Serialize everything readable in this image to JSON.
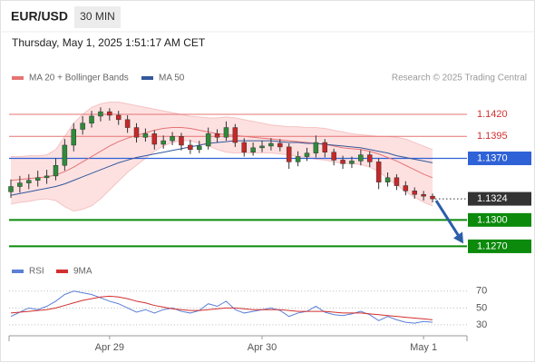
{
  "chart_data": {
    "type": "candlestick",
    "title": "EUR/USD",
    "timeframe": "30 MIN",
    "subtitle": "Thursday, May 1, 2025 1:51:17 AM CET",
    "source": "Research © 2025 Trading Central",
    "categories": [
      null,
      null,
      null,
      null,
      null,
      null,
      null,
      null,
      null,
      null,
      null,
      "Apr 29",
      null,
      null,
      null,
      null,
      null,
      null,
      null,
      null,
      null,
      null,
      null,
      null,
      null,
      null,
      null,
      null,
      "Apr 30",
      null,
      null,
      null,
      null,
      null,
      null,
      null,
      null,
      null,
      null,
      null,
      null,
      null,
      null,
      null,
      null,
      null,
      "May 1",
      null
    ],
    "up_color": "#2e8b3a",
    "down_color": "#c62828",
    "open": [
      1.1332,
      1.1338,
      1.1342,
      1.1345,
      1.1348,
      1.135,
      1.1362,
      1.1385,
      1.1403,
      1.141,
      1.1418,
      1.1423,
      1.1419,
      1.1414,
      1.1405,
      1.1394,
      1.1398,
      1.1386,
      1.139,
      1.1395,
      1.1385,
      1.138,
      1.1384,
      1.1398,
      1.1394,
      1.1405,
      1.1388,
      1.1377,
      1.1382,
      1.1384,
      1.1387,
      1.1383,
      1.1366,
      1.1372,
      1.1376,
      1.1388,
      1.1377,
      1.1368,
      1.1364,
      1.1367,
      1.1374,
      1.1366,
      1.1343,
      1.1348,
      1.1339,
      1.1333,
      1.1329,
      1.1327
    ],
    "high": [
      1.1346,
      1.135,
      1.1352,
      1.1356,
      1.1357,
      1.137,
      1.1392,
      1.141,
      1.1418,
      1.1424,
      1.1428,
      1.1427,
      1.1424,
      1.1419,
      1.141,
      1.1404,
      1.1402,
      1.1396,
      1.14,
      1.1399,
      1.1391,
      1.139,
      1.1405,
      1.1403,
      1.1412,
      1.1409,
      1.1393,
      1.1388,
      1.139,
      1.1393,
      1.1392,
      1.1387,
      1.1378,
      1.1382,
      1.1396,
      1.1392,
      1.1381,
      1.1373,
      1.1372,
      1.138,
      1.1378,
      1.137,
      1.1354,
      1.1352,
      1.1344,
      1.1337,
      1.1333,
      1.133
    ],
    "low": [
      1.1325,
      1.1331,
      1.1335,
      1.1338,
      1.1341,
      1.1345,
      1.1356,
      1.1378,
      1.1397,
      1.1405,
      1.1412,
      1.1413,
      1.1408,
      1.1399,
      1.1388,
      1.1389,
      1.138,
      1.1381,
      1.1385,
      1.1379,
      1.1375,
      1.1376,
      1.138,
      1.1388,
      1.139,
      1.1383,
      1.1372,
      1.1373,
      1.1377,
      1.1379,
      1.1378,
      1.1358,
      1.1361,
      1.1367,
      1.1371,
      1.1371,
      1.1362,
      1.1358,
      1.1359,
      1.1362,
      1.136,
      1.1335,
      1.1338,
      1.1334,
      1.1328,
      1.1324,
      1.1322,
      1.132
    ],
    "close": [
      1.1338,
      1.1342,
      1.1345,
      1.1348,
      1.135,
      1.1362,
      1.1385,
      1.1403,
      1.141,
      1.1418,
      1.1423,
      1.1419,
      1.1414,
      1.1405,
      1.1394,
      1.1398,
      1.1386,
      1.139,
      1.1395,
      1.1385,
      1.138,
      1.1384,
      1.1398,
      1.1394,
      1.1405,
      1.1388,
      1.1377,
      1.1382,
      1.1384,
      1.1387,
      1.1383,
      1.1366,
      1.1372,
      1.1376,
      1.1388,
      1.1377,
      1.1368,
      1.1364,
      1.1367,
      1.1374,
      1.1366,
      1.1343,
      1.1348,
      1.1339,
      1.1333,
      1.1329,
      1.1327,
      1.1324
    ],
    "overlays": [
      {
        "name": "MA 20 + Bollinger Bands",
        "color": "#e57373",
        "band_color": "#fcd9d9",
        "values": [
          1.1345,
          1.1346,
          1.1347,
          1.1348,
          1.1349,
          1.1351,
          1.1355,
          1.136,
          1.1366,
          1.1372,
          1.1378,
          1.1384,
          1.1389,
          1.1393,
          1.1396,
          1.1399,
          1.1402,
          1.1404,
          1.1405,
          1.1405,
          1.1404,
          1.1402,
          1.14,
          1.1398,
          1.1397,
          1.1396,
          1.1395,
          1.1394,
          1.1393,
          1.1392,
          1.1391,
          1.139,
          1.1389,
          1.1388,
          1.1387,
          1.1386,
          1.1384,
          1.1382,
          1.1381,
          1.138,
          1.1378,
          1.1375,
          1.1371,
          1.1367,
          1.1362,
          1.1357,
          1.1352,
          1.1348
        ],
        "upper": [
          1.1372,
          1.1372,
          1.1373,
          1.1373,
          1.1374,
          1.138,
          1.1395,
          1.141,
          1.142,
          1.1428,
          1.1432,
          1.1434,
          1.1434,
          1.1432,
          1.143,
          1.1428,
          1.1426,
          1.1424,
          1.1422,
          1.142,
          1.1418,
          1.1417,
          1.1416,
          1.1416,
          1.1417,
          1.1416,
          1.1414,
          1.1412,
          1.141,
          1.1408,
          1.1407,
          1.1406,
          1.1406,
          1.1405,
          1.1405,
          1.1404,
          1.1402,
          1.14,
          1.1398,
          1.1397,
          1.1396,
          1.1395,
          1.1395,
          1.1394,
          1.1392,
          1.1388,
          1.1384,
          1.138
        ],
        "lower": [
          1.1318,
          1.132,
          1.1321,
          1.1323,
          1.1324,
          1.1322,
          1.1315,
          1.131,
          1.1312,
          1.1316,
          1.1324,
          1.1334,
          1.1344,
          1.1354,
          1.1362,
          1.137,
          1.1378,
          1.1384,
          1.1388,
          1.139,
          1.139,
          1.1387,
          1.1384,
          1.138,
          1.1377,
          1.1376,
          1.1376,
          1.1376,
          1.1376,
          1.1376,
          1.1375,
          1.1374,
          1.1372,
          1.1371,
          1.1369,
          1.1368,
          1.1366,
          1.1364,
          1.1364,
          1.1363,
          1.136,
          1.1355,
          1.1347,
          1.134,
          1.1332,
          1.1326,
          1.132,
          1.1316
        ]
      },
      {
        "name": "MA 50",
        "color": "#34589c",
        "values": [
          1.1328,
          1.133,
          1.1332,
          1.1334,
          1.1336,
          1.1338,
          1.1341,
          1.1345,
          1.1349,
          1.1353,
          1.1357,
          1.1361,
          1.1365,
          1.1368,
          1.1371,
          1.1373,
          1.1375,
          1.1377,
          1.1379,
          1.1381,
          1.1383,
          1.1385,
          1.1387,
          1.1388,
          1.1389,
          1.139,
          1.139,
          1.139,
          1.139,
          1.139,
          1.1389,
          1.1388,
          1.1388,
          1.1387,
          1.1387,
          1.1386,
          1.1385,
          1.1384,
          1.1383,
          1.1382,
          1.138,
          1.1378,
          1.1376,
          1.1373,
          1.1371,
          1.1369,
          1.1367,
          1.1365
        ]
      }
    ],
    "ylim": [
      1.1256,
      1.1452
    ],
    "levels": [
      {
        "value": 1.142,
        "label": "1.1420",
        "color": "#e57373",
        "box": false
      },
      {
        "value": 1.1395,
        "label": "1.1395",
        "color": "#e57373",
        "box": false
      },
      {
        "value": 1.137,
        "label": "1.1370",
        "color": "#2f62d6",
        "box": true
      },
      {
        "value": 1.1324,
        "label": "1.1324",
        "color": "#333333",
        "box": true,
        "dotted": true
      },
      {
        "value": 1.13,
        "label": "1.1300",
        "color": "#0b8a0b",
        "box": true
      },
      {
        "value": 1.127,
        "label": "1.1270",
        "color": "#0b8a0b",
        "box": true
      }
    ],
    "arrow_color": "#2a5ea8",
    "rsi": {
      "series": [
        {
          "name": "RSI",
          "color": "#5b7fd6",
          "values": [
            40,
            45,
            50,
            48,
            52,
            58,
            66,
            70,
            68,
            66,
            62,
            58,
            55,
            50,
            45,
            48,
            44,
            48,
            50,
            46,
            44,
            47,
            55,
            52,
            58,
            48,
            44,
            46,
            48,
            50,
            47,
            40,
            44,
            46,
            52,
            45,
            42,
            41,
            43,
            46,
            42,
            35,
            40,
            36,
            33,
            32,
            34,
            33
          ]
        },
        {
          "name": "9MA",
          "color": "#d32f2f",
          "values": [
            44,
            45,
            46,
            47,
            48,
            50,
            53,
            56,
            59,
            61,
            63,
            64,
            63,
            61,
            58,
            56,
            53,
            51,
            49,
            48,
            47,
            47,
            48,
            49,
            50,
            50,
            49,
            48,
            48,
            48,
            48,
            47,
            46,
            46,
            46,
            46,
            45,
            44,
            44,
            44,
            43,
            42,
            41,
            40,
            39,
            38,
            37,
            36
          ]
        }
      ],
      "ylim": [
        17,
        87
      ],
      "yticks": [
        30,
        50,
        70
      ]
    }
  }
}
